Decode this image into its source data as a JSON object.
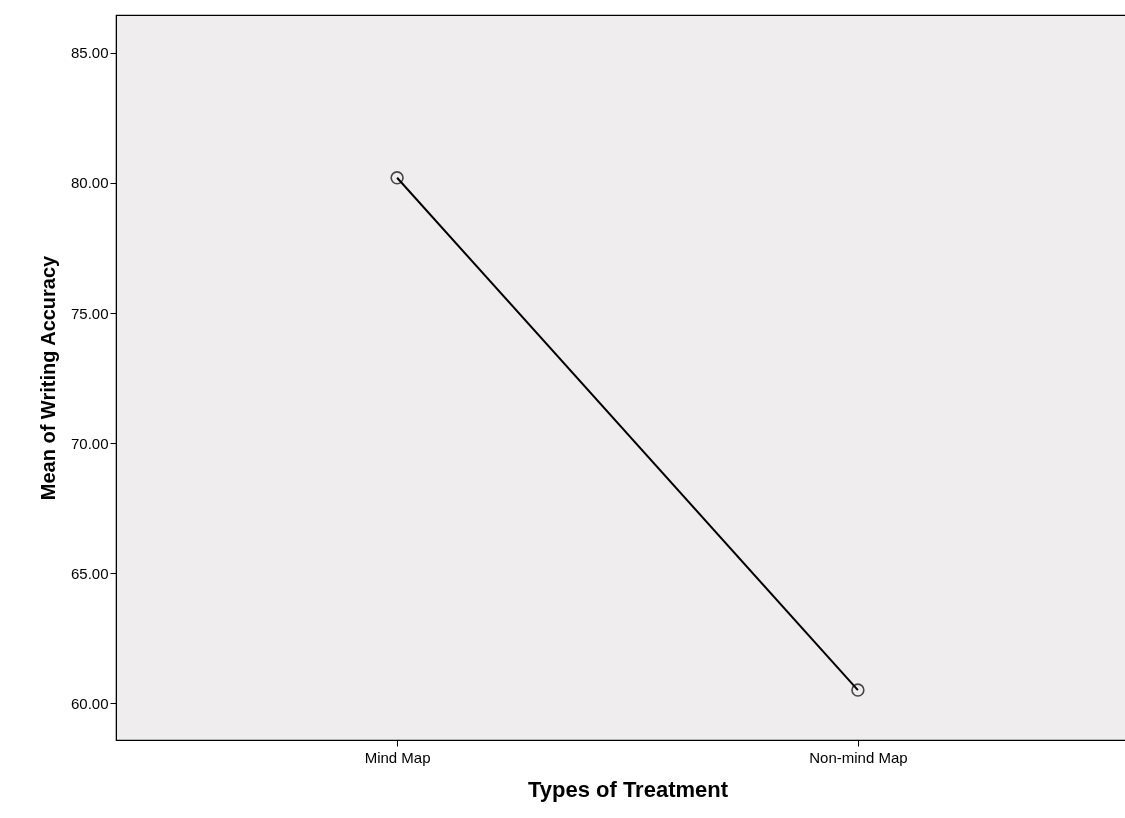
{
  "chart_data": {
    "type": "line",
    "xlabel": "Types of Treatment",
    "ylabel": "Mean of Writing Accuracy",
    "categories": [
      "Mind Map",
      "Non-mind Map"
    ],
    "series": [
      {
        "color": "#000000",
        "values": [
          80.2,
          60.5
        ]
      }
    ],
    "ylim": [
      58.58,
      86.46
    ],
    "yticks": [
      {
        "value": 60,
        "label": "60.00"
      },
      {
        "value": 65,
        "label": "65.00"
      },
      {
        "value": 70,
        "label": "70.00"
      },
      {
        "value": 75,
        "label": "75.00"
      },
      {
        "value": 80,
        "label": "80.00"
      },
      {
        "value": 85,
        "label": "85.00"
      }
    ],
    "grid": false,
    "marker": "circle",
    "line_style": "solid"
  }
}
